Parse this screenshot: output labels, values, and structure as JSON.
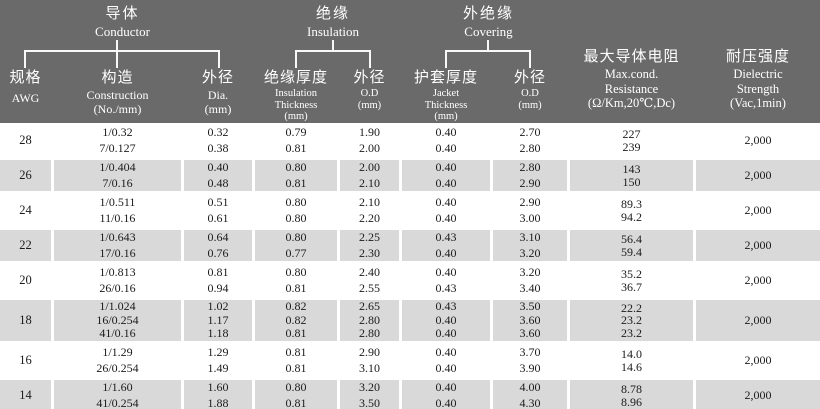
{
  "colors": {
    "header_bg": "#6a6a6a",
    "header_text": "#ffffff",
    "row_shade": "#d9d9d9",
    "body_text": "#1b1b1b",
    "line_color": "#f8f8f8"
  },
  "table": {
    "groups": {
      "conductor": {
        "zh": "导体",
        "en": "Conductor"
      },
      "insulation": {
        "zh": "绝缘",
        "en": "Insulation"
      },
      "covering": {
        "zh": "外绝缘",
        "en": "Covering"
      }
    },
    "columns": [
      {
        "id": "awg",
        "zh": "规格",
        "en": [
          "AWG"
        ]
      },
      {
        "id": "construction",
        "zh": "构造",
        "en": [
          "Construction",
          "(No./mm)"
        ]
      },
      {
        "id": "conductor-dia",
        "zh": "外径",
        "en": [
          "Dia.",
          "(mm)"
        ]
      },
      {
        "id": "insulation-thickness",
        "zh": "绝缘厚度",
        "en": [
          "Insulation",
          "Thickness",
          "(mm)"
        ]
      },
      {
        "id": "insulation-od",
        "zh": "外径",
        "en": [
          "O.D",
          "(mm)"
        ]
      },
      {
        "id": "jacket-thickness",
        "zh": "护套厚度",
        "en": [
          "Jacket",
          "Thickness",
          "(mm)"
        ]
      },
      {
        "id": "covering-od",
        "zh": "外径",
        "en": [
          "O.D",
          "(mm)"
        ]
      },
      {
        "id": "resistance",
        "zh": "最大导体电阻",
        "en": [
          "Max.cond.",
          "Resistance",
          "(Ω/Km,20℃,Dc)"
        ]
      },
      {
        "id": "dielectric",
        "zh": "耐压强度",
        "en": [
          "Dielectric",
          "Strength",
          "(Vac,1min)"
        ]
      }
    ],
    "rows": [
      {
        "awg": "28",
        "shaded": false,
        "cells": [
          [
            "1/0.32",
            "7/0.127"
          ],
          [
            "0.32",
            "0.38"
          ],
          [
            "0.79",
            "0.81"
          ],
          [
            "1.90",
            "2.00"
          ],
          [
            "0.40",
            "0.40"
          ],
          [
            "2.70",
            "2.80"
          ],
          [
            "227",
            "239"
          ],
          [
            "2,000"
          ]
        ]
      },
      {
        "awg": "26",
        "shaded": true,
        "cells": [
          [
            "1/0.404",
            "7/0.16"
          ],
          [
            "0.40",
            "0.48"
          ],
          [
            "0.80",
            "0.81"
          ],
          [
            "2.00",
            "2.10"
          ],
          [
            "0.40",
            "0.40"
          ],
          [
            "2.80",
            "2.90"
          ],
          [
            "143",
            "150"
          ],
          [
            "2,000"
          ]
        ]
      },
      {
        "awg": "24",
        "shaded": false,
        "cells": [
          [
            "1/0.511",
            "11/0.16"
          ],
          [
            "0.51",
            "0.61"
          ],
          [
            "0.80",
            "0.80"
          ],
          [
            "2.10",
            "2.20"
          ],
          [
            "0.40",
            "0.40"
          ],
          [
            "2.90",
            "3.00"
          ],
          [
            "89.3",
            "94.2"
          ],
          [
            "2,000"
          ]
        ]
      },
      {
        "awg": "22",
        "shaded": true,
        "cells": [
          [
            "1/0.643",
            "17/0.16"
          ],
          [
            "0.64",
            "0.76"
          ],
          [
            "0.80",
            "0.77"
          ],
          [
            "2.25",
            "2.30"
          ],
          [
            "0.43",
            "0.40"
          ],
          [
            "3.10",
            "3.20"
          ],
          [
            "56.4",
            "59.4"
          ],
          [
            "2,000"
          ]
        ]
      },
      {
        "awg": "20",
        "shaded": false,
        "cells": [
          [
            "1/0.813",
            "26/0.16"
          ],
          [
            "0.81",
            "0.94"
          ],
          [
            "0.80",
            "0.81"
          ],
          [
            "2.40",
            "2.55"
          ],
          [
            "0.40",
            "0.43"
          ],
          [
            "3.20",
            "3.40"
          ],
          [
            "35.2",
            "36.7"
          ],
          [
            "2,000"
          ]
        ]
      },
      {
        "awg": "18",
        "shaded": true,
        "cells": [
          [
            "1/1.024",
            "16/0.254",
            "41/0.16"
          ],
          [
            "1.02",
            "1.17",
            "1.18"
          ],
          [
            "0.82",
            "0.82",
            "0.81"
          ],
          [
            "2.65",
            "2.80",
            "2.80"
          ],
          [
            "0.43",
            "0.40",
            "0.40"
          ],
          [
            "3.50",
            "3.60",
            "3.60"
          ],
          [
            "22.2",
            "23.2",
            "23.2"
          ],
          [
            "2,000"
          ]
        ]
      },
      {
        "awg": "16",
        "shaded": false,
        "cells": [
          [
            "1/1.29",
            "26/0.254"
          ],
          [
            "1.29",
            "1.49"
          ],
          [
            "0.81",
            "0.81"
          ],
          [
            "2.90",
            "3.10"
          ],
          [
            "0.40",
            "0.40"
          ],
          [
            "3.70",
            "3.90"
          ],
          [
            "14.0",
            "14.6"
          ],
          [
            "2,000"
          ]
        ]
      },
      {
        "awg": "14",
        "shaded": true,
        "cells": [
          [
            "1/1.60",
            "41/0.254"
          ],
          [
            "1.60",
            "1.88"
          ],
          [
            "0.80",
            "0.81"
          ],
          [
            "3.20",
            "3.50"
          ],
          [
            "0.40",
            "0.40"
          ],
          [
            "4.00",
            "4.30"
          ],
          [
            "8.78",
            "8.96"
          ],
          [
            "2,000"
          ]
        ]
      }
    ]
  }
}
